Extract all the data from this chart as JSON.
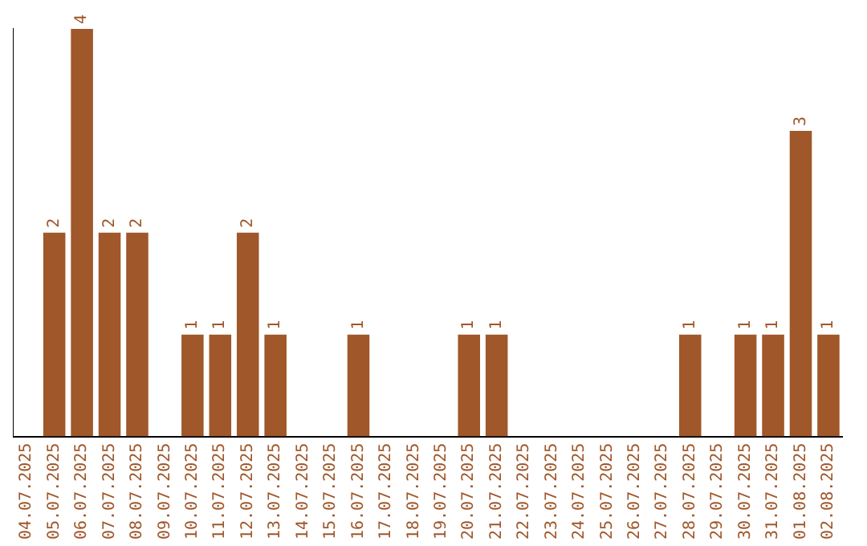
{
  "chart_data": {
    "type": "bar",
    "categories": [
      "04.07.2025",
      "05.07.2025",
      "06.07.2025",
      "07.07.2025",
      "08.07.2025",
      "09.07.2025",
      "10.07.2025",
      "11.07.2025",
      "12.07.2025",
      "13.07.2025",
      "14.07.2025",
      "15.07.2025",
      "16.07.2025",
      "17.07.2025",
      "18.07.2025",
      "19.07.2025",
      "20.07.2025",
      "21.07.2025",
      "22.07.2025",
      "23.07.2025",
      "24.07.2025",
      "25.07.2025",
      "26.07.2025",
      "27.07.2025",
      "28.07.2025",
      "29.07.2025",
      "30.07.2025",
      "31.07.2025",
      "01.08.2025",
      "02.08.2025"
    ],
    "values": [
      0,
      2,
      4,
      2,
      2,
      0,
      1,
      1,
      2,
      1,
      0,
      0,
      1,
      0,
      0,
      0,
      1,
      1,
      0,
      0,
      0,
      0,
      0,
      0,
      1,
      0,
      1,
      1,
      3,
      1
    ],
    "value_labels": [
      null,
      "2",
      "4",
      "2",
      "2",
      null,
      "1",
      "1",
      "2",
      "1",
      null,
      null,
      "1",
      null,
      null,
      null,
      "1",
      "1",
      null,
      null,
      null,
      null,
      null,
      null,
      "1",
      null,
      "1",
      "1",
      "3",
      "1"
    ],
    "color": "#a0572a",
    "grid": false,
    "legend": false
  }
}
